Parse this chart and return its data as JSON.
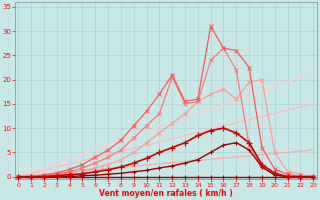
{
  "bg_color": "#c8e8e8",
  "grid_color": "#aacccc",
  "xlabel": "Vent moyen/en rafales ( km/h )",
  "xlim": [
    -0.3,
    23.3
  ],
  "ylim": [
    -0.5,
    36
  ],
  "x_ticks": [
    0,
    1,
    2,
    3,
    4,
    5,
    6,
    7,
    8,
    9,
    10,
    11,
    12,
    13,
    14,
    15,
    16,
    17,
    18,
    19,
    20,
    21,
    22,
    23
  ],
  "y_ticks": [
    0,
    5,
    10,
    15,
    20,
    25,
    30,
    35
  ],
  "lines": [
    {
      "x": [
        0,
        1,
        2,
        3,
        4,
        5,
        6,
        7,
        8,
        9,
        10,
        11,
        12,
        13,
        14,
        15,
        16,
        17,
        18,
        19,
        20,
        21,
        22,
        23
      ],
      "y": [
        0,
        0,
        0,
        0,
        0,
        0,
        0,
        0,
        0,
        0,
        0,
        0,
        0,
        0,
        0,
        0,
        0,
        0,
        0,
        0,
        0,
        0,
        0,
        0
      ],
      "color": "#990000",
      "lw": 1.0,
      "marker": "+",
      "ms": 3.5,
      "mew": 0.8,
      "zorder": 6
    },
    {
      "x": [
        0,
        1,
        2,
        3,
        4,
        5,
        6,
        7,
        8,
        9,
        10,
        11,
        12,
        13,
        14,
        15,
        16,
        17,
        18,
        19,
        20,
        21,
        22,
        23
      ],
      "y": [
        0,
        0,
        0,
        0,
        0,
        0.2,
        0.3,
        0.5,
        0.7,
        1.0,
        1.3,
        1.8,
        2.2,
        2.8,
        3.5,
        5.0,
        6.5,
        7.0,
        5.5,
        2.0,
        0.3,
        0,
        0,
        0
      ],
      "color": "#990000",
      "lw": 1.0,
      "marker": "+",
      "ms": 3.5,
      "mew": 0.8,
      "zorder": 6
    },
    {
      "x": [
        0,
        1,
        2,
        3,
        4,
        5,
        6,
        7,
        8,
        9,
        10,
        11,
        12,
        13,
        14,
        15,
        16,
        17,
        18,
        19,
        20,
        21,
        22,
        23
      ],
      "y": [
        0,
        0,
        0,
        0.2,
        0.4,
        0.6,
        1.0,
        1.4,
        2.0,
        2.8,
        3.8,
        5.0,
        6.0,
        7.0,
        8.5,
        9.5,
        10.0,
        9.0,
        7.0,
        2.5,
        0.7,
        0,
        0,
        0
      ],
      "color": "#cc0000",
      "lw": 1.2,
      "marker": "+",
      "ms": 4.0,
      "mew": 0.9,
      "zorder": 6
    },
    {
      "x": [
        0,
        23
      ],
      "y": [
        0,
        5.5
      ],
      "color": "#ffaaaa",
      "lw": 0.9,
      "marker": null,
      "ms": 0,
      "mew": 0,
      "zorder": 2
    },
    {
      "x": [
        0,
        23
      ],
      "y": [
        0,
        15.0
      ],
      "color": "#ffbbbb",
      "lw": 0.9,
      "marker": null,
      "ms": 0,
      "mew": 0,
      "zorder": 2
    },
    {
      "x": [
        0,
        23
      ],
      "y": [
        0,
        21.5
      ],
      "color": "#ffcccc",
      "lw": 0.9,
      "marker": null,
      "ms": 0,
      "mew": 0,
      "zorder": 2
    },
    {
      "x": [
        0,
        1,
        2,
        3,
        4,
        5,
        6,
        7,
        8,
        9,
        10,
        11,
        12,
        13,
        14,
        15,
        16,
        17,
        18,
        19,
        20,
        21,
        22,
        23
      ],
      "y": [
        0,
        0,
        0,
        0.3,
        0.8,
        1.2,
        1.8,
        2.5,
        3.5,
        5.0,
        7.0,
        9.0,
        11.0,
        13.0,
        15.5,
        17.0,
        18.0,
        16.0,
        19.5,
        20.0,
        5.0,
        1.0,
        0.5,
        0
      ],
      "color": "#ff9999",
      "lw": 0.9,
      "marker": "x",
      "ms": 3.0,
      "mew": 0.7,
      "zorder": 4
    },
    {
      "x": [
        0,
        1,
        2,
        3,
        4,
        5,
        6,
        7,
        8,
        9,
        10,
        11,
        12,
        13,
        14,
        15,
        16,
        17,
        18,
        19,
        20,
        21,
        22,
        23
      ],
      "y": [
        0,
        0,
        0.2,
        0.5,
        1.0,
        1.8,
        2.8,
        4.0,
        5.5,
        8.0,
        10.5,
        13.0,
        20.5,
        15.0,
        15.5,
        24.0,
        26.5,
        22.0,
        6.5,
        2.0,
        0.5,
        0,
        0,
        0
      ],
      "color": "#ff7777",
      "lw": 0.9,
      "marker": "x",
      "ms": 3.0,
      "mew": 0.7,
      "zorder": 4
    },
    {
      "x": [
        0,
        1,
        2,
        3,
        4,
        5,
        6,
        7,
        8,
        9,
        10,
        11,
        12,
        13,
        14,
        15,
        16,
        17,
        18,
        19,
        20,
        21,
        22,
        23
      ],
      "y": [
        0,
        0,
        0.3,
        0.8,
        1.5,
        2.5,
        4.0,
        5.5,
        7.5,
        10.5,
        13.5,
        17.0,
        21.0,
        15.5,
        16.0,
        31.0,
        26.5,
        26.0,
        22.5,
        6.0,
        1.5,
        0.5,
        0,
        0
      ],
      "color": "#ff5555",
      "lw": 0.9,
      "marker": "x",
      "ms": 3.0,
      "mew": 0.7,
      "zorder": 4
    }
  ]
}
